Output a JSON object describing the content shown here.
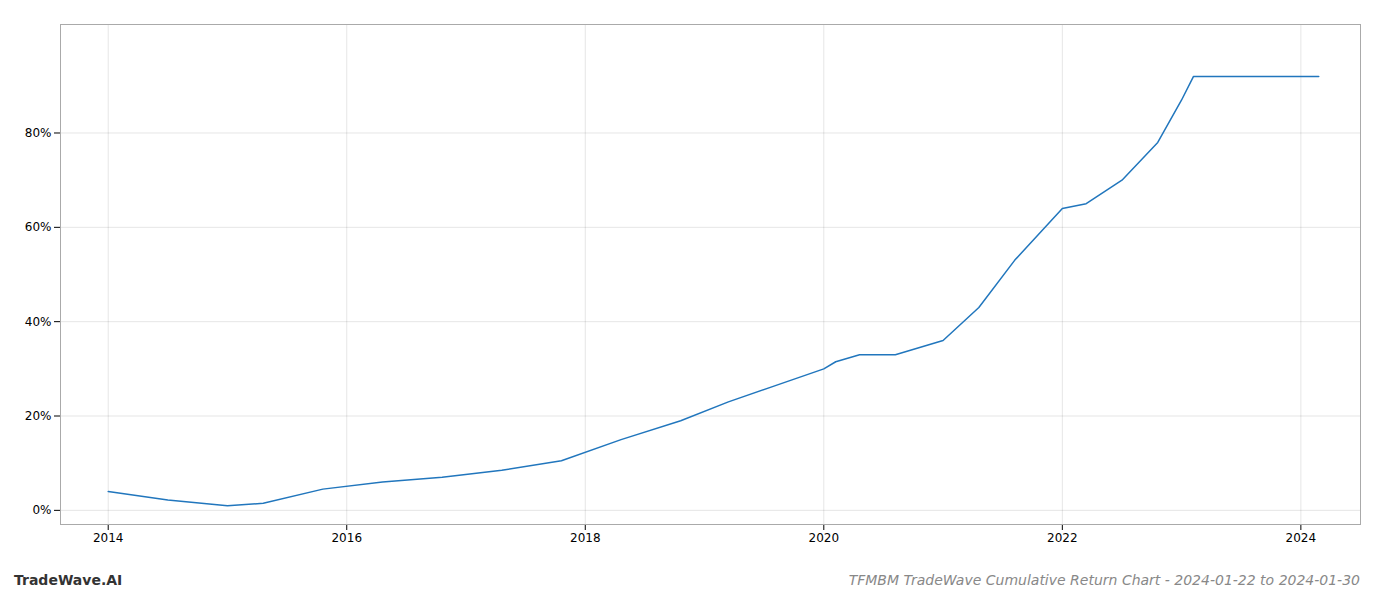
{
  "chart_data": {
    "type": "line",
    "title": "TFMBM TradeWave Cumulative Return Chart - 2024-01-22 to 2024-01-30",
    "annotations": [
      "TradeWave.AI"
    ],
    "x": [
      2014.0,
      2014.5,
      2015.0,
      2015.3,
      2015.8,
      2016.3,
      2016.8,
      2017.3,
      2017.8,
      2018.3,
      2018.8,
      2019.2,
      2019.6,
      2020.0,
      2020.1,
      2020.3,
      2020.6,
      2021.0,
      2021.3,
      2021.6,
      2022.0,
      2022.2,
      2022.5,
      2022.8,
      2023.0,
      2023.1,
      2023.4,
      2023.7,
      2024.0,
      2024.15
    ],
    "values": [
      4.0,
      2.2,
      1.0,
      1.5,
      4.5,
      6.0,
      7.0,
      8.5,
      10.5,
      15.0,
      19.0,
      23.0,
      26.5,
      30.0,
      31.5,
      33.0,
      33.0,
      36.0,
      43.0,
      53.0,
      64.0,
      65.0,
      70.0,
      78.0,
      87.0,
      92.0,
      92.0,
      92.0,
      92.0,
      92.0
    ],
    "color": "#2176bd",
    "xlim": [
      2013.6,
      2024.5
    ],
    "xticks": [
      2014,
      2016,
      2018,
      2020,
      2022,
      2024
    ],
    "ylim": [
      -3,
      103
    ],
    "yticks": [
      {
        "value": 0,
        "label": "0%"
      },
      {
        "value": 20,
        "label": "20%"
      },
      {
        "value": 40,
        "label": "40%"
      },
      {
        "value": 60,
        "label": "60%"
      },
      {
        "value": 80,
        "label": "80%"
      }
    ],
    "grid": true
  }
}
